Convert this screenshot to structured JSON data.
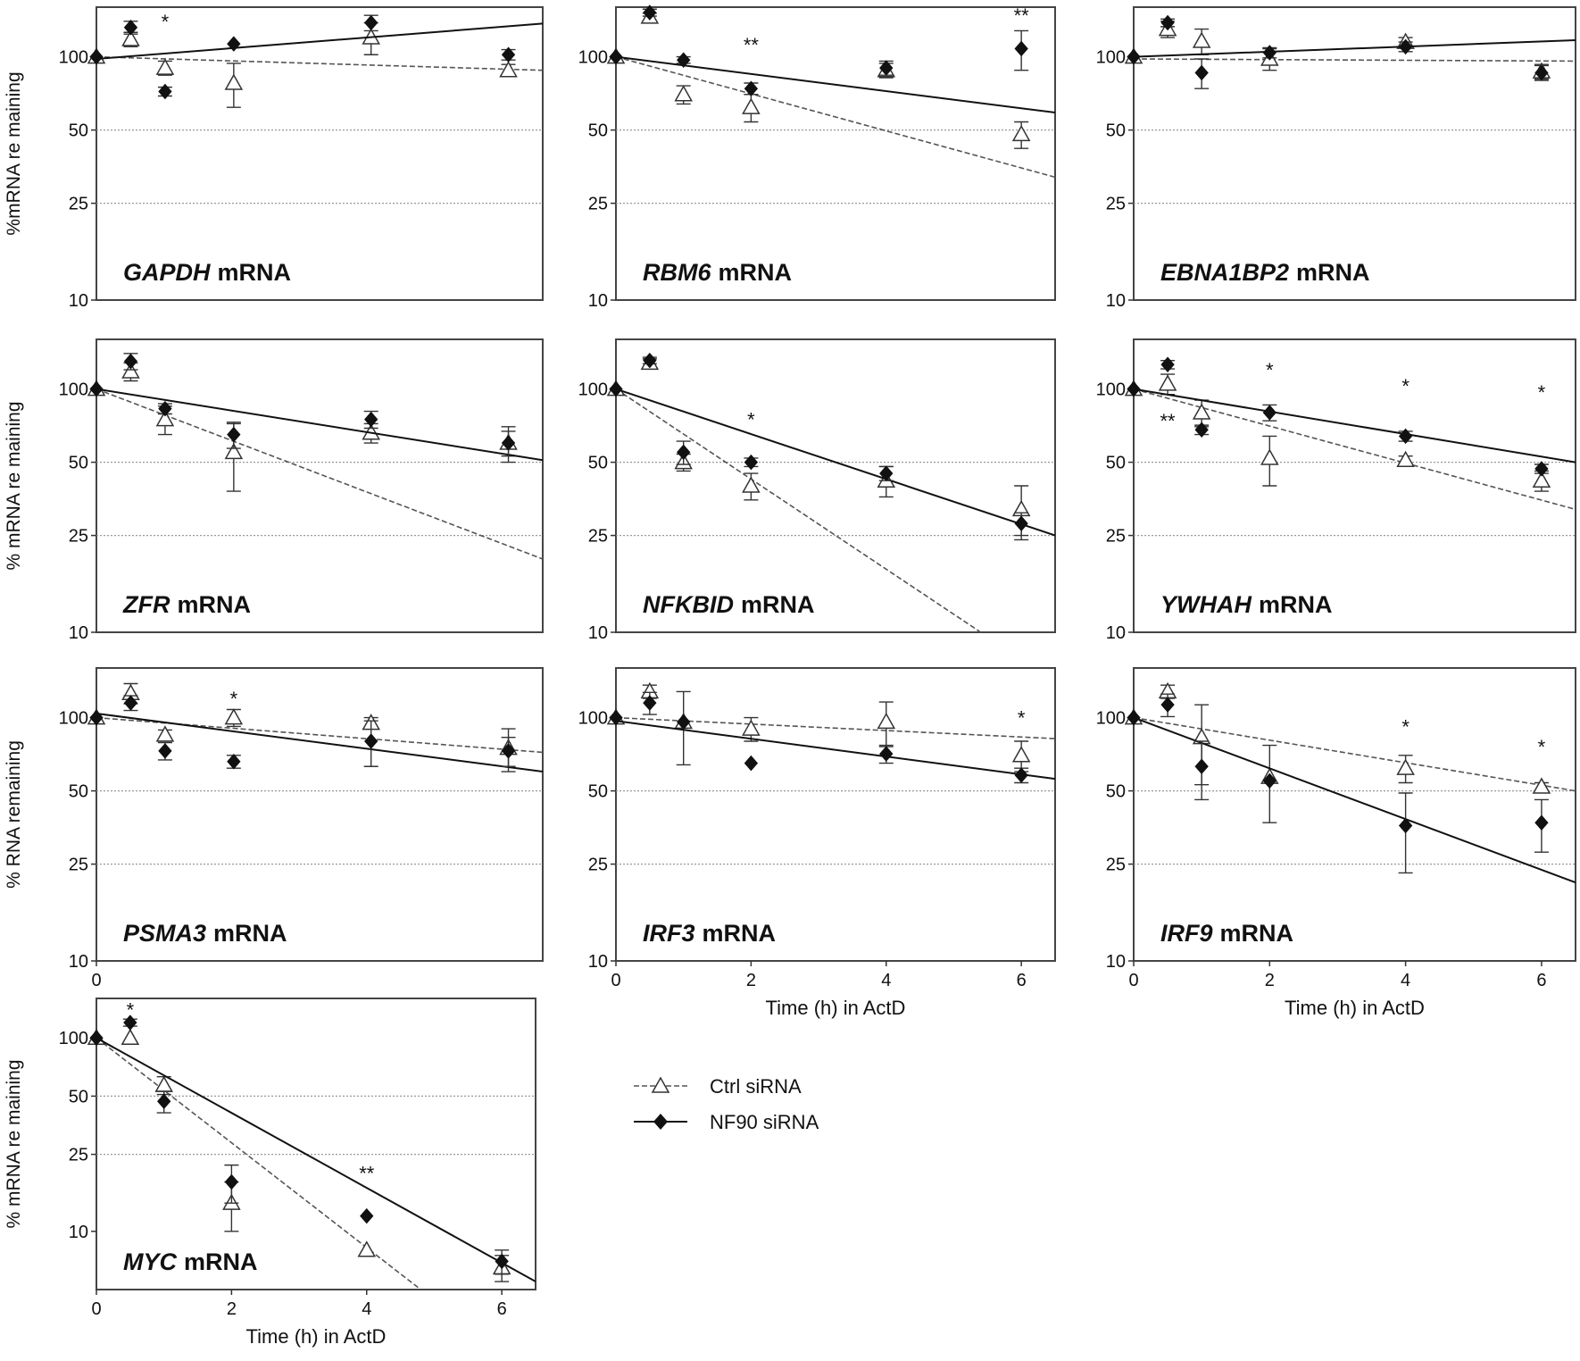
{
  "figure": {
    "legend": [
      {
        "label": "Ctrl siRNA",
        "marker": "open-triangle",
        "line": "dashed"
      },
      {
        "label": "NF90 siRNA",
        "marker": "filled-diamond",
        "line": "solid"
      }
    ]
  },
  "chart_data": [
    {
      "type": "line",
      "title": "GAPDH mRNA",
      "gene": "GAPDH",
      "title_suffix": "mRNA",
      "ylabel": "%mRNA re maining",
      "xlabel": "",
      "y_scale": "log",
      "ylim": [
        10,
        160
      ],
      "xlim": [
        0,
        6.5
      ],
      "yticks": [
        100,
        50,
        25,
        10
      ],
      "xticks": [],
      "grid": "horizontal dotted at 50 and 25",
      "series": [
        {
          "name": "Ctrl siRNA",
          "x": [
            0,
            0.5,
            1,
            2,
            4,
            6
          ],
          "y": [
            100,
            118,
            90,
            78,
            120,
            88
          ],
          "err": [
            0,
            8,
            6,
            16,
            18,
            5
          ],
          "fit": [
            [
              0,
              100
            ],
            [
              6.5,
              88
            ]
          ]
        },
        {
          "name": "NF90 siRNA",
          "x": [
            0,
            0.5,
            1,
            2,
            4,
            6
          ],
          "y": [
            100,
            132,
            72,
            113,
            138,
            102
          ],
          "err": [
            0,
            8,
            3,
            0,
            10,
            5
          ],
          "fit": [
            [
              0,
              98
            ],
            [
              6.5,
              137
            ]
          ]
        }
      ],
      "annotations": [
        {
          "x": 1,
          "y": 140,
          "text": "*"
        }
      ]
    },
    {
      "type": "line",
      "title": "RBM6 mRNA",
      "gene": "RBM6",
      "title_suffix": "mRNA",
      "ylabel": "",
      "xlabel": "",
      "y_scale": "log",
      "ylim": [
        10,
        160
      ],
      "xlim": [
        0,
        6.5
      ],
      "yticks": [
        100,
        50,
        25,
        10
      ],
      "xticks": [],
      "grid": "horizontal dotted at 50 and 25",
      "series": [
        {
          "name": "Ctrl siRNA",
          "x": [
            0,
            0.5,
            1,
            2,
            4,
            6
          ],
          "y": [
            100,
            146,
            70,
            62,
            88,
            48
          ],
          "err": [
            0,
            5,
            6,
            8,
            6,
            6
          ],
          "fit": [
            [
              0,
              100
            ],
            [
              6.5,
              32
            ]
          ]
        },
        {
          "name": "NF90 siRNA",
          "x": [
            0,
            0.5,
            1,
            2,
            4,
            6
          ],
          "y": [
            100,
            152,
            97,
            74,
            90,
            108
          ],
          "err": [
            0,
            5,
            3,
            4,
            6,
            20
          ],
          "fit": [
            [
              0,
              100
            ],
            [
              6.5,
              59
            ]
          ]
        }
      ],
      "annotations": [
        {
          "x": 2,
          "y": 112,
          "text": "**"
        },
        {
          "x": 6,
          "y": 148,
          "text": "**"
        }
      ]
    },
    {
      "type": "line",
      "title": "EBNA1BP2 mRNA",
      "gene": "EBNA1BP2",
      "title_suffix": "mRNA",
      "ylabel": "",
      "xlabel": "",
      "y_scale": "log",
      "ylim": [
        10,
        160
      ],
      "xlim": [
        0,
        6.5
      ],
      "yticks": [
        100,
        50,
        25,
        10
      ],
      "xticks": [],
      "grid": "horizontal dotted at 50 and 25",
      "series": [
        {
          "name": "Ctrl siRNA",
          "x": [
            0,
            0.5,
            1,
            2,
            4,
            6
          ],
          "y": [
            100,
            130,
            116,
            98,
            115,
            87
          ],
          "err": [
            0,
            10,
            14,
            10,
            5,
            6
          ],
          "fit": [
            [
              0,
              98
            ],
            [
              6.5,
              96
            ]
          ]
        },
        {
          "name": "NF90 siRNA",
          "x": [
            0,
            0.5,
            1,
            2,
            4,
            6
          ],
          "y": [
            100,
            138,
            86,
            104,
            110,
            86
          ],
          "err": [
            0,
            5,
            12,
            5,
            5,
            6
          ],
          "fit": [
            [
              0,
              100
            ],
            [
              6.5,
              117
            ]
          ]
        }
      ],
      "annotations": []
    },
    {
      "type": "line",
      "title": "ZFR mRNA",
      "gene": "ZFR",
      "title_suffix": "mRNA",
      "ylabel": "% mRNA re maining",
      "xlabel": "",
      "y_scale": "log",
      "ylim": [
        10,
        160
      ],
      "xlim": [
        0,
        6.5
      ],
      "yticks": [
        100,
        50,
        25,
        10
      ],
      "xticks": [],
      "grid": "horizontal dotted at 50 and 25",
      "series": [
        {
          "name": "Ctrl siRNA",
          "x": [
            0,
            0.5,
            1,
            2,
            4,
            6
          ],
          "y": [
            100,
            118,
            75,
            55,
            66,
            60
          ],
          "err": [
            0,
            10,
            10,
            17,
            6,
            7
          ],
          "fit": [
            [
              0,
              100
            ],
            [
              6.5,
              20
            ]
          ]
        },
        {
          "name": "NF90 siRNA",
          "x": [
            0,
            0.5,
            1,
            2,
            4,
            6
          ],
          "y": [
            100,
            130,
            83,
            65,
            75,
            60
          ],
          "err": [
            0,
            10,
            4,
            8,
            6,
            10
          ],
          "fit": [
            [
              0,
              100
            ],
            [
              6.5,
              51
            ]
          ]
        }
      ],
      "annotations": []
    },
    {
      "type": "line",
      "title": "NFKBID mRNA",
      "gene": "NFKBID",
      "title_suffix": "mRNA",
      "ylabel": "",
      "xlabel": "",
      "y_scale": "log",
      "ylim": [
        10,
        160
      ],
      "xlim": [
        0,
        6.5
      ],
      "yticks": [
        100,
        50,
        25,
        10
      ],
      "xticks": [],
      "grid": "horizontal dotted at 50 and 25",
      "series": [
        {
          "name": "Ctrl siRNA",
          "x": [
            0,
            0.5,
            1,
            2,
            4,
            6
          ],
          "y": [
            100,
            128,
            50,
            40,
            42,
            32
          ],
          "err": [
            0,
            5,
            4,
            5,
            6,
            8
          ],
          "fit": [
            [
              0,
              100
            ],
            [
              5.4,
              10
            ]
          ]
        },
        {
          "name": "NF90 siRNA",
          "x": [
            0,
            0.5,
            1,
            2,
            4,
            6
          ],
          "y": [
            100,
            131,
            55,
            50,
            45,
            28
          ],
          "err": [
            0,
            4,
            6,
            2,
            3,
            3
          ],
          "fit": [
            [
              0,
              100
            ],
            [
              6.5,
              25
            ]
          ]
        }
      ],
      "annotations": [
        {
          "x": 2,
          "y": 75,
          "text": "*"
        }
      ]
    },
    {
      "type": "line",
      "title": "YWHAH mRNA",
      "gene": "YWHAH",
      "title_suffix": "mRNA",
      "ylabel": "",
      "xlabel": "",
      "y_scale": "log",
      "ylim": [
        10,
        160
      ],
      "xlim": [
        0,
        6.5
      ],
      "yticks": [
        100,
        50,
        25,
        10
      ],
      "xticks": [],
      "grid": "horizontal dotted at 50 and 25",
      "series": [
        {
          "name": "Ctrl siRNA",
          "x": [
            0,
            0.5,
            1,
            2,
            4,
            6
          ],
          "y": [
            100,
            105,
            80,
            52,
            51,
            42
          ],
          "err": [
            0,
            10,
            10,
            12,
            2,
            4
          ],
          "fit": [
            [
              0,
              100
            ],
            [
              6.5,
              32
            ]
          ]
        },
        {
          "name": "NF90 siRNA",
          "x": [
            0,
            0.5,
            1,
            2,
            4,
            6
          ],
          "y": [
            100,
            126,
            68,
            80,
            64,
            47
          ],
          "err": [
            0,
            5,
            3,
            6,
            3,
            2
          ],
          "fit": [
            [
              0,
              100
            ],
            [
              6.5,
              50
            ]
          ]
        }
      ],
      "annotations": [
        {
          "x": 0.5,
          "y": 74,
          "text": "**"
        },
        {
          "x": 2,
          "y": 120,
          "text": "*"
        },
        {
          "x": 4,
          "y": 103,
          "text": "*"
        },
        {
          "x": 6,
          "y": 97,
          "text": "*"
        }
      ]
    },
    {
      "type": "line",
      "title": "PSMA3 mRNA",
      "gene": "PSMA3",
      "title_suffix": "mRNA",
      "ylabel": "% RNA remaining",
      "xlabel": "",
      "y_scale": "log",
      "ylim": [
        10,
        160
      ],
      "xlim": [
        0,
        6.5
      ],
      "yticks": [
        100,
        50,
        25,
        10
      ],
      "xticks": [
        0
      ],
      "grid": "horizontal dotted at 50 and 25",
      "series": [
        {
          "name": "Ctrl siRNA",
          "x": [
            0,
            0.5,
            1,
            2,
            4,
            6
          ],
          "y": [
            100,
            126,
            85,
            100,
            95,
            75
          ],
          "err": [
            0,
            12,
            4,
            8,
            5,
            15
          ],
          "fit": [
            [
              0,
              100
            ],
            [
              6.5,
              72
            ]
          ]
        },
        {
          "name": "NF90 siRNA",
          "x": [
            0,
            0.5,
            1,
            2,
            4,
            6
          ],
          "y": [
            100,
            115,
            73,
            66,
            80,
            73
          ],
          "err": [
            0,
            8,
            6,
            4,
            17,
            10
          ],
          "fit": [
            [
              0,
              104
            ],
            [
              6.5,
              60
            ]
          ]
        }
      ],
      "annotations": [
        {
          "x": 2,
          "y": 120,
          "text": "*"
        }
      ]
    },
    {
      "type": "line",
      "title": "IRF3 mRNA",
      "gene": "IRF3",
      "title_suffix": "mRNA",
      "ylabel": "",
      "xlabel": "Time (h) in ActD",
      "y_scale": "log",
      "ylim": [
        10,
        160
      ],
      "xlim": [
        0,
        6.5
      ],
      "yticks": [
        100,
        50,
        25,
        10
      ],
      "xticks": [
        0,
        2,
        4,
        6
      ],
      "grid": "horizontal dotted at 50 and 25",
      "series": [
        {
          "name": "Ctrl siRNA",
          "x": [
            0,
            0.5,
            1,
            2,
            4,
            6
          ],
          "y": [
            100,
            128,
            96,
            90,
            96,
            70
          ],
          "err": [
            0,
            8,
            32,
            10,
            20,
            10
          ],
          "fit": [
            [
              0,
              100
            ],
            [
              6.5,
              82
            ]
          ]
        },
        {
          "name": "NF90 siRNA",
          "x": [
            0,
            0.5,
            1,
            2,
            4,
            6
          ],
          "y": [
            100,
            115,
            96,
            65,
            71,
            58
          ],
          "err": [
            0,
            12,
            0,
            0,
            6,
            4
          ],
          "fit": [
            [
              0,
              97
            ],
            [
              6.5,
              56
            ]
          ]
        }
      ],
      "annotations": [
        {
          "x": 6,
          "y": 100,
          "text": "*"
        }
      ]
    },
    {
      "type": "line",
      "title": "IRF9 mRNA",
      "gene": "IRF9",
      "title_suffix": "mRNA",
      "ylabel": "",
      "xlabel": "Time (h) in ActD",
      "y_scale": "log",
      "ylim": [
        10,
        160
      ],
      "xlim": [
        0,
        6.5
      ],
      "yticks": [
        100,
        50,
        25,
        10
      ],
      "xticks": [
        0,
        2,
        4,
        6
      ],
      "grid": "horizontal dotted at 50 and 25",
      "series": [
        {
          "name": "Ctrl siRNA",
          "x": [
            0,
            0.5,
            1,
            2,
            4,
            6
          ],
          "y": [
            100,
            128,
            83,
            57,
            62,
            52
          ],
          "err": [
            0,
            8,
            30,
            20,
            8,
            2
          ],
          "fit": [
            [
              0,
              100
            ],
            [
              6.5,
              50
            ]
          ]
        },
        {
          "name": "NF90 siRNA",
          "x": [
            0,
            0.5,
            1,
            2,
            4,
            6
          ],
          "y": [
            100,
            113,
            63,
            55,
            36,
            37
          ],
          "err": [
            0,
            12,
            17,
            0,
            13,
            9
          ],
          "fit": [
            [
              0,
              100
            ],
            [
              6.5,
              21
            ]
          ]
        }
      ],
      "annotations": [
        {
          "x": 4,
          "y": 92,
          "text": "*"
        },
        {
          "x": 6,
          "y": 76,
          "text": "*"
        }
      ]
    },
    {
      "type": "line",
      "title": "MYC mRNA",
      "gene": "MYC",
      "title_suffix": "mRNA",
      "ylabel": "% mRNA re maining",
      "xlabel": "Time (h) in ActD",
      "y_scale": "log",
      "ylim": [
        5,
        160
      ],
      "xlim": [
        0,
        6.5
      ],
      "yticks": [
        100,
        50,
        25,
        10
      ],
      "xticks": [
        0,
        2,
        4,
        6
      ],
      "grid": "horizontal dotted at 50 and 25",
      "series": [
        {
          "name": "Ctrl siRNA",
          "x": [
            0,
            0.5,
            1,
            2,
            4,
            6
          ],
          "y": [
            100,
            100,
            57,
            14,
            8,
            6.5
          ],
          "err": [
            0,
            0,
            6,
            4,
            0,
            1
          ],
          "fit": [
            [
              0,
              100
            ],
            [
              4.8,
              5
            ]
          ]
        },
        {
          "name": "NF90 siRNA",
          "x": [
            0,
            0.5,
            1,
            2,
            4,
            6
          ],
          "y": [
            100,
            120,
            47,
            18,
            12,
            7
          ],
          "err": [
            0,
            5,
            6,
            4,
            0,
            1
          ],
          "fit": [
            [
              0,
              100
            ],
            [
              6.5,
              5.5
            ]
          ]
        }
      ],
      "annotations": [
        {
          "x": 0.5,
          "y": 140,
          "text": "*"
        },
        {
          "x": 4,
          "y": 20,
          "text": "**"
        }
      ]
    }
  ]
}
